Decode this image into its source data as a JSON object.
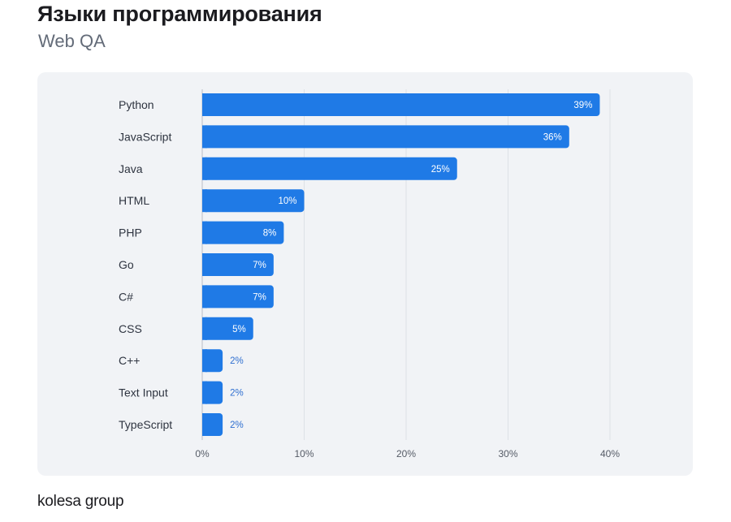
{
  "header": {
    "title": "Языки программирования",
    "subtitle": "Web QA"
  },
  "footer": {
    "brand": "kolesa group"
  },
  "colors": {
    "bar": "#1f7ae6",
    "grid": "#dde1e7",
    "panel": "#f1f3f6"
  },
  "chart_data": {
    "type": "bar",
    "orientation": "horizontal",
    "title": "Языки программирования",
    "subtitle": "Web QA",
    "xlabel": "",
    "ylabel": "",
    "categories": [
      "Python",
      "JavaScript",
      "Java",
      "HTML",
      "PHP",
      "Go",
      "C#",
      "CSS",
      "C++",
      "Text Input",
      "TypeScript"
    ],
    "values": [
      39,
      36,
      25,
      10,
      8,
      7,
      7,
      5,
      2,
      2,
      2
    ],
    "value_labels": [
      "39%",
      "36%",
      "25%",
      "10%",
      "8%",
      "7%",
      "7%",
      "5%",
      "2%",
      "2%",
      "2%"
    ],
    "xlim": [
      0,
      40
    ],
    "ticks": [
      0,
      10,
      20,
      30,
      40
    ],
    "tick_labels": [
      "0%",
      "10%",
      "20%",
      "30%",
      "40%"
    ],
    "grid": true
  }
}
